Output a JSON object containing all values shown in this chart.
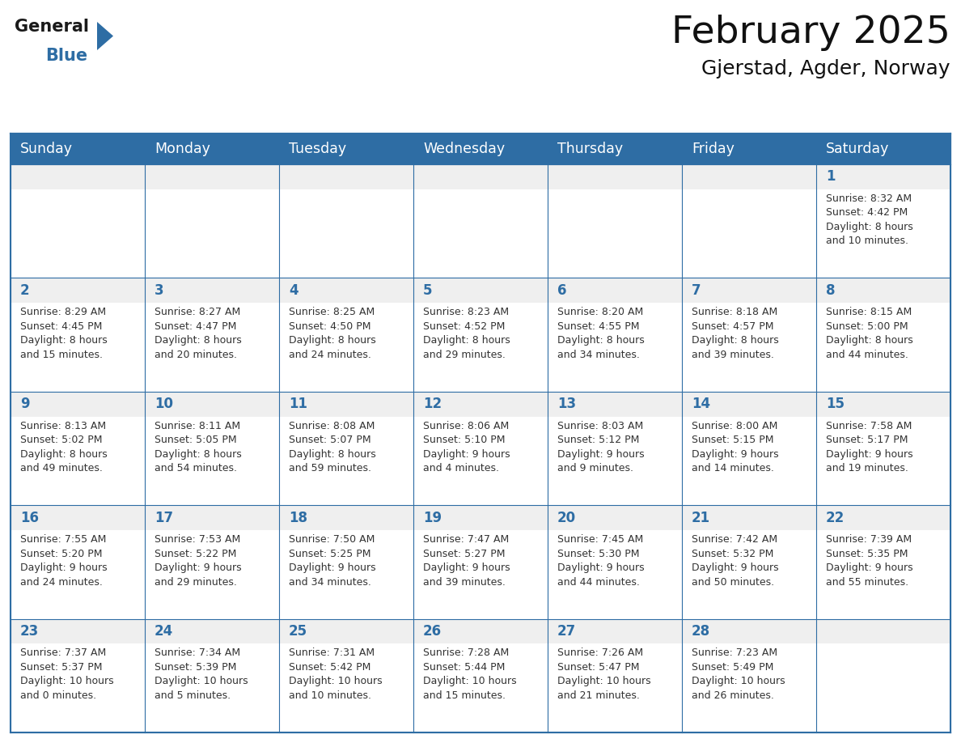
{
  "title": "February 2025",
  "subtitle": "Gjerstad, Agder, Norway",
  "header_bg": "#2E6DA4",
  "header_text_color": "#FFFFFF",
  "cell_bg": "#FFFFFF",
  "cell_top_bg": "#EFEFEF",
  "day_number_color": "#2E6DA4",
  "info_text_color": "#333333",
  "border_color": "#2E6DA4",
  "days_of_week": [
    "Sunday",
    "Monday",
    "Tuesday",
    "Wednesday",
    "Thursday",
    "Friday",
    "Saturday"
  ],
  "weeks": [
    [
      {
        "day": null,
        "info": null
      },
      {
        "day": null,
        "info": null
      },
      {
        "day": null,
        "info": null
      },
      {
        "day": null,
        "info": null
      },
      {
        "day": null,
        "info": null
      },
      {
        "day": null,
        "info": null
      },
      {
        "day": "1",
        "info": "Sunrise: 8:32 AM\nSunset: 4:42 PM\nDaylight: 8 hours\nand 10 minutes."
      }
    ],
    [
      {
        "day": "2",
        "info": "Sunrise: 8:29 AM\nSunset: 4:45 PM\nDaylight: 8 hours\nand 15 minutes."
      },
      {
        "day": "3",
        "info": "Sunrise: 8:27 AM\nSunset: 4:47 PM\nDaylight: 8 hours\nand 20 minutes."
      },
      {
        "day": "4",
        "info": "Sunrise: 8:25 AM\nSunset: 4:50 PM\nDaylight: 8 hours\nand 24 minutes."
      },
      {
        "day": "5",
        "info": "Sunrise: 8:23 AM\nSunset: 4:52 PM\nDaylight: 8 hours\nand 29 minutes."
      },
      {
        "day": "6",
        "info": "Sunrise: 8:20 AM\nSunset: 4:55 PM\nDaylight: 8 hours\nand 34 minutes."
      },
      {
        "day": "7",
        "info": "Sunrise: 8:18 AM\nSunset: 4:57 PM\nDaylight: 8 hours\nand 39 minutes."
      },
      {
        "day": "8",
        "info": "Sunrise: 8:15 AM\nSunset: 5:00 PM\nDaylight: 8 hours\nand 44 minutes."
      }
    ],
    [
      {
        "day": "9",
        "info": "Sunrise: 8:13 AM\nSunset: 5:02 PM\nDaylight: 8 hours\nand 49 minutes."
      },
      {
        "day": "10",
        "info": "Sunrise: 8:11 AM\nSunset: 5:05 PM\nDaylight: 8 hours\nand 54 minutes."
      },
      {
        "day": "11",
        "info": "Sunrise: 8:08 AM\nSunset: 5:07 PM\nDaylight: 8 hours\nand 59 minutes."
      },
      {
        "day": "12",
        "info": "Sunrise: 8:06 AM\nSunset: 5:10 PM\nDaylight: 9 hours\nand 4 minutes."
      },
      {
        "day": "13",
        "info": "Sunrise: 8:03 AM\nSunset: 5:12 PM\nDaylight: 9 hours\nand 9 minutes."
      },
      {
        "day": "14",
        "info": "Sunrise: 8:00 AM\nSunset: 5:15 PM\nDaylight: 9 hours\nand 14 minutes."
      },
      {
        "day": "15",
        "info": "Sunrise: 7:58 AM\nSunset: 5:17 PM\nDaylight: 9 hours\nand 19 minutes."
      }
    ],
    [
      {
        "day": "16",
        "info": "Sunrise: 7:55 AM\nSunset: 5:20 PM\nDaylight: 9 hours\nand 24 minutes."
      },
      {
        "day": "17",
        "info": "Sunrise: 7:53 AM\nSunset: 5:22 PM\nDaylight: 9 hours\nand 29 minutes."
      },
      {
        "day": "18",
        "info": "Sunrise: 7:50 AM\nSunset: 5:25 PM\nDaylight: 9 hours\nand 34 minutes."
      },
      {
        "day": "19",
        "info": "Sunrise: 7:47 AM\nSunset: 5:27 PM\nDaylight: 9 hours\nand 39 minutes."
      },
      {
        "day": "20",
        "info": "Sunrise: 7:45 AM\nSunset: 5:30 PM\nDaylight: 9 hours\nand 44 minutes."
      },
      {
        "day": "21",
        "info": "Sunrise: 7:42 AM\nSunset: 5:32 PM\nDaylight: 9 hours\nand 50 minutes."
      },
      {
        "day": "22",
        "info": "Sunrise: 7:39 AM\nSunset: 5:35 PM\nDaylight: 9 hours\nand 55 minutes."
      }
    ],
    [
      {
        "day": "23",
        "info": "Sunrise: 7:37 AM\nSunset: 5:37 PM\nDaylight: 10 hours\nand 0 minutes."
      },
      {
        "day": "24",
        "info": "Sunrise: 7:34 AM\nSunset: 5:39 PM\nDaylight: 10 hours\nand 5 minutes."
      },
      {
        "day": "25",
        "info": "Sunrise: 7:31 AM\nSunset: 5:42 PM\nDaylight: 10 hours\nand 10 minutes."
      },
      {
        "day": "26",
        "info": "Sunrise: 7:28 AM\nSunset: 5:44 PM\nDaylight: 10 hours\nand 15 minutes."
      },
      {
        "day": "27",
        "info": "Sunrise: 7:26 AM\nSunset: 5:47 PM\nDaylight: 10 hours\nand 21 minutes."
      },
      {
        "day": "28",
        "info": "Sunrise: 7:23 AM\nSunset: 5:49 PM\nDaylight: 10 hours\nand 26 minutes."
      },
      {
        "day": null,
        "info": null
      }
    ]
  ],
  "logo_general_color": "#1a1a1a",
  "logo_blue_color": "#2E6DA4",
  "title_fontsize": 34,
  "subtitle_fontsize": 18,
  "header_fontsize": 12.5,
  "day_num_fontsize": 12,
  "info_fontsize": 9.0
}
